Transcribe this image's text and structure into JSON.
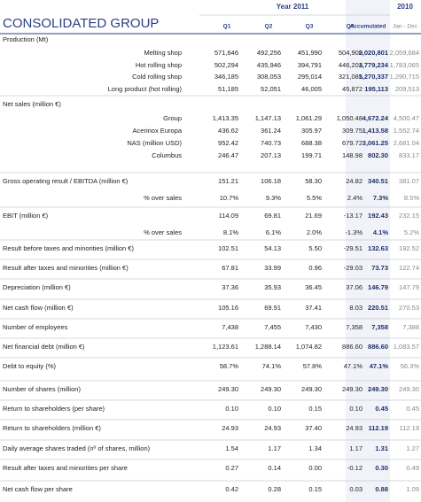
{
  "header": {
    "title": "CONSOLIDATED GROUP",
    "year_2011": "Year 2011",
    "year_2010": "2010",
    "columns": [
      "Q1",
      "Q2",
      "Q3",
      "Q4",
      "Accumulated",
      "Jan - Dec"
    ]
  },
  "rows": [
    {
      "label": "Production (Mt)",
      "items": [
        {
          "label": "Melting shop",
          "values": [
            "571,646",
            "492,256",
            "451,990",
            "504,909",
            "2,020,801",
            "2,059,684"
          ]
        },
        {
          "label": "Hot rolling shop",
          "values": [
            "502,294",
            "435,946",
            "394,791",
            "446,203",
            "1,779,234",
            "1,783,065"
          ]
        },
        {
          "label": "Cold rolling shop",
          "values": [
            "346,185",
            "308,053",
            "295,014",
            "321,085",
            "1,270,337",
            "1,290,715"
          ]
        },
        {
          "label": "Long product (hot rolling)",
          "values": [
            "51,185",
            "52,051",
            "46,005",
            "45,872",
            "195,113",
            "209,513"
          ]
        }
      ]
    },
    {
      "label": "Net sales (million €)",
      "items": [
        {
          "label": "Group",
          "values": [
            "1,413.35",
            "1,147.13",
            "1,061.29",
            "1,050.48",
            "4,672.24",
            "4,500.47"
          ]
        },
        {
          "label": "Acerinox Europa",
          "values": [
            "436.62",
            "361.24",
            "305.97",
            "309.75",
            "1,413.58",
            "1,552.74"
          ]
        },
        {
          "label": "NAS (million USD)",
          "values": [
            "952.42",
            "740.73",
            "688.38",
            "679.72",
            "3,061.25",
            "2,681.04"
          ]
        },
        {
          "label": "Columbus",
          "values": [
            "246.47",
            "207.13",
            "199.71",
            "148.98",
            "802.30",
            "833.17"
          ]
        }
      ]
    },
    {
      "label": "Gross operating result / EBITDA  (million €)",
      "values": [
        "151.21",
        "106.18",
        "58.30",
        "24.82",
        "340.51",
        "381.07"
      ],
      "items": [
        {
          "label": "% over sales",
          "values": [
            "10.7%",
            "9.3%",
            "5.5%",
            "2.4%",
            "7.3%",
            "8.5%"
          ]
        }
      ]
    },
    {
      "label": "EBIT (million €)",
      "values": [
        "114.09",
        "69.81",
        "21.69",
        "-13.17",
        "192.43",
        "232.15"
      ],
      "items": [
        {
          "label": "% over sales",
          "values": [
            "8.1%",
            "6.1%",
            "2.0%",
            "-1.3%",
            "4.1%",
            "5.2%"
          ]
        }
      ]
    },
    {
      "label": "Result before taxes and minorities (million €)",
      "values": [
        "102.51",
        "54.13",
        "5.50",
        "-29.51",
        "132.63",
        "192.52"
      ]
    },
    {
      "label": "Result after taxes and minorities (million €)",
      "values": [
        "67.81",
        "33.99",
        "0.96",
        "-29.03",
        "73.73",
        "122.74"
      ]
    },
    {
      "label": "Depreciation (million €)",
      "values": [
        "37.36",
        "35.93",
        "36.45",
        "37.06",
        "146.79",
        "147.79"
      ]
    },
    {
      "label": "Net cash flow (million €)",
      "values": [
        "105.16",
        "69.91",
        "37.41",
        "8.03",
        "220.51",
        "270.53"
      ]
    },
    {
      "label": "Number of employees",
      "values": [
        "7,438",
        "7,455",
        "7,430",
        "7,358",
        "7,358",
        "7,388"
      ]
    },
    {
      "label": "Net financial debt (million €)",
      "values": [
        "1,123.61",
        "1,288.14",
        "1,074.82",
        "886.60",
        "886.60",
        "1,083.57"
      ]
    },
    {
      "label": "Debt to equity (%)",
      "values": [
        "58.7%",
        "74.1%",
        "57.8%",
        "47.1%",
        "47.1%",
        "56.3%"
      ]
    },
    {
      "label": "Number of shares (million)",
      "values": [
        "249.30",
        "249.30",
        "249.30",
        "249.30",
        "249.30",
        "249.30"
      ]
    },
    {
      "label": "Return to shareholders (per share)",
      "values": [
        "0.10",
        "0.10",
        "0.15",
        "0.10",
        "0.45",
        "0.45"
      ]
    },
    {
      "label": "Return to shareholders (million €)",
      "values": [
        "24.93",
        "24.93",
        "37.40",
        "24.93",
        "112.19",
        "112.19"
      ]
    },
    {
      "label": "Daily average shares traded (nº of shares, million)",
      "values": [
        "1.54",
        "1.17",
        "1.34",
        "1.17",
        "1.31",
        "1.27"
      ]
    },
    {
      "label": "Result after taxes and minorities per share",
      "values": [
        "0.27",
        "0.14",
        "0.00",
        "-0.12",
        "0.30",
        "0.49"
      ]
    },
    {
      "label": "Net cash flow per share",
      "values": [
        "0.42",
        "0.28",
        "0.15",
        "0.03",
        "0.88",
        "1.09"
      ]
    }
  ]
}
